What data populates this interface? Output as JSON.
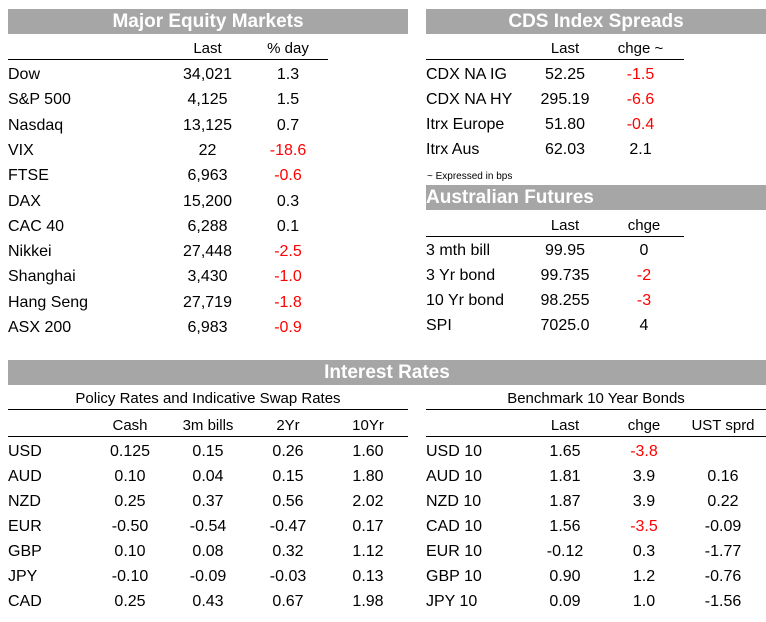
{
  "equity": {
    "title": "Major Equity Markets",
    "col_last": "Last",
    "col_pct": "% day",
    "rows": [
      {
        "name": "Dow",
        "last": "34,021",
        "chg": "1.3",
        "neg": false
      },
      {
        "name": "S&P 500",
        "last": "4,125",
        "chg": "1.5",
        "neg": false
      },
      {
        "name": "Nasdaq",
        "last": "13,125",
        "chg": "0.7",
        "neg": false
      },
      {
        "name": "VIX",
        "last": "22",
        "chg": "-18.6",
        "neg": true
      },
      {
        "name": "FTSE",
        "last": "6,963",
        "chg": "-0.6",
        "neg": true
      },
      {
        "name": "DAX",
        "last": "15,200",
        "chg": "0.3",
        "neg": false
      },
      {
        "name": "CAC 40",
        "last": "6,288",
        "chg": "0.1",
        "neg": false
      },
      {
        "name": "Nikkei",
        "last": "27,448",
        "chg": "-2.5",
        "neg": true
      },
      {
        "name": "Shanghai",
        "last": "3,430",
        "chg": "-1.0",
        "neg": true
      },
      {
        "name": "Hang Seng",
        "last": "27,719",
        "chg": "-1.8",
        "neg": true
      },
      {
        "name": "ASX 200",
        "last": "6,983",
        "chg": "-0.9",
        "neg": true
      }
    ]
  },
  "cds": {
    "title": "CDS Index Spreads",
    "col_last": "Last",
    "col_chg": "chge ~",
    "rows": [
      {
        "name": "CDX NA IG",
        "last": "52.25",
        "chg": "-1.5",
        "neg": true
      },
      {
        "name": "CDX NA HY",
        "last": "295.19",
        "chg": "-6.6",
        "neg": true
      },
      {
        "name": "Itrx Europe",
        "last": "51.80",
        "chg": "-0.4",
        "neg": true
      },
      {
        "name": "Itrx Aus",
        "last": "62.03",
        "chg": "2.1",
        "neg": false
      }
    ],
    "note": "~ Expressed in bps"
  },
  "futures": {
    "title": "Australian Futures",
    "col_last": "Last",
    "col_chg": "chge",
    "rows": [
      {
        "name": "3 mth bill",
        "last": "99.95",
        "chg": "0",
        "neg": false
      },
      {
        "name": "3 Yr bond",
        "last": "99.735",
        "chg": "-2",
        "neg": true
      },
      {
        "name": "10 Yr bond",
        "last": "98.255",
        "chg": "-3",
        "neg": true
      },
      {
        "name": "SPI",
        "last": "7025.0",
        "chg": "4",
        "neg": false
      }
    ]
  },
  "rates": {
    "title": "Interest Rates",
    "policy": {
      "subtitle": "Policy Rates and Indicative Swap Rates",
      "cols": [
        "Cash",
        "3m bills",
        "2Yr",
        "10Yr"
      ],
      "rows": [
        {
          "name": "USD",
          "v": [
            "0.125",
            "0.15",
            "0.26",
            "1.60"
          ]
        },
        {
          "name": "AUD",
          "v": [
            "0.10",
            "0.04",
            "0.15",
            "1.80"
          ]
        },
        {
          "name": "NZD",
          "v": [
            "0.25",
            "0.37",
            "0.56",
            "2.02"
          ]
        },
        {
          "name": "EUR",
          "v": [
            "-0.50",
            "-0.54",
            "-0.47",
            "0.17"
          ]
        },
        {
          "name": "GBP",
          "v": [
            "0.10",
            "0.08",
            "0.32",
            "1.12"
          ]
        },
        {
          "name": "JPY",
          "v": [
            "-0.10",
            "-0.09",
            "-0.03",
            "0.13"
          ]
        },
        {
          "name": "CAD",
          "v": [
            "0.25",
            "0.43",
            "0.67",
            "1.98"
          ]
        }
      ]
    },
    "bonds": {
      "subtitle": "Benchmark 10 Year Bonds",
      "cols": [
        "Last",
        "chge",
        "UST sprd"
      ],
      "rows": [
        {
          "name": "USD 10",
          "last": "1.65",
          "chg": "-3.8",
          "neg": true,
          "sprd": ""
        },
        {
          "name": "AUD 10",
          "last": "1.81",
          "chg": "3.9",
          "neg": false,
          "sprd": "0.16"
        },
        {
          "name": "NZD 10",
          "last": "1.87",
          "chg": "3.9",
          "neg": false,
          "sprd": "0.22"
        },
        {
          "name": "CAD 10",
          "last": "1.56",
          "chg": "-3.5",
          "neg": true,
          "sprd": "-0.09"
        },
        {
          "name": "EUR 10",
          "last": "-0.12",
          "chg": "0.3",
          "neg": false,
          "sprd": "-1.77"
        },
        {
          "name": "GBP 10",
          "last": "0.90",
          "chg": "1.2",
          "neg": false,
          "sprd": "-0.76"
        },
        {
          "name": "JPY 10",
          "last": "0.09",
          "chg": "1.0",
          "neg": false,
          "sprd": "-1.56"
        }
      ]
    }
  },
  "colors": {
    "header_bg": "#a6a6a6",
    "negative": "#ff0000"
  }
}
